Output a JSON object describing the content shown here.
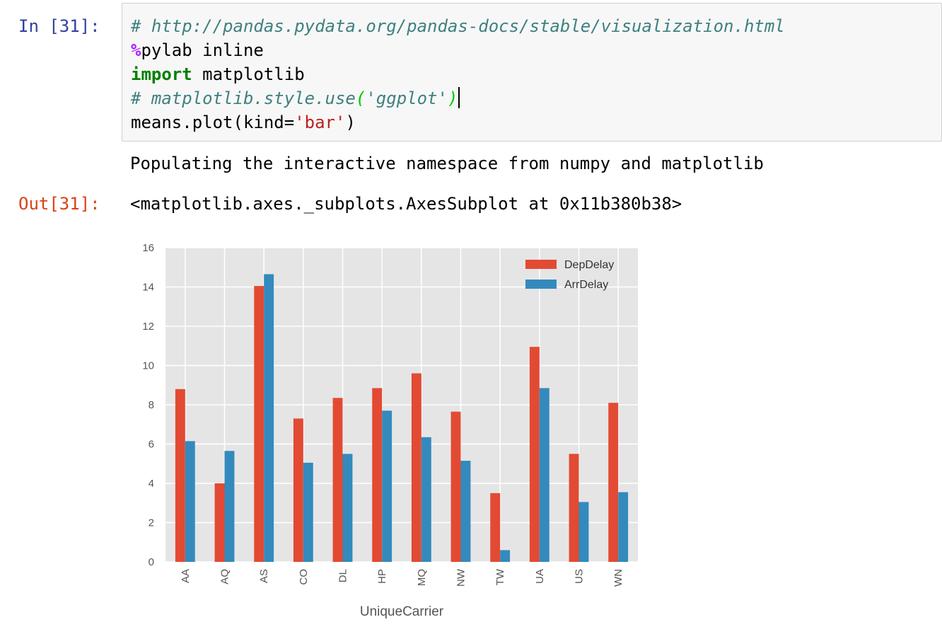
{
  "cell_in": {
    "prompt": "In [31]:",
    "lines": [
      "# http://pandas.pydata.org/pandas-docs/stable/visualization.html",
      "%",
      "pylab inline",
      "import",
      " matplotlib",
      "# matplotlib.style.use",
      "(",
      "'ggplot'",
      ")",
      "means.plot(kind=",
      "'bar'",
      ")"
    ]
  },
  "stdout": "Populating the interactive namespace from numpy and matplotlib",
  "cell_out": {
    "prompt": "Out[31]:",
    "text": "<matplotlib.axes._subplots.AxesSubplot at 0x11b380b38>"
  },
  "chart_data": {
    "type": "bar",
    "xlabel": "UniqueCarrier",
    "ylabel": "",
    "ylim": [
      0,
      16
    ],
    "yticks": [
      "0",
      "2",
      "4",
      "6",
      "8",
      "10",
      "12",
      "14",
      "16"
    ],
    "categories": [
      "AA",
      "AQ",
      "AS",
      "CO",
      "DL",
      "HP",
      "MQ",
      "NW",
      "TW",
      "UA",
      "US",
      "WN"
    ],
    "series": [
      {
        "name": "DepDelay",
        "color": "#e24a33",
        "values": [
          8.8,
          4.0,
          14.05,
          7.3,
          8.35,
          8.85,
          9.6,
          7.65,
          3.5,
          10.95,
          5.5,
          8.1
        ]
      },
      {
        "name": "ArrDelay",
        "color": "#348abd",
        "values": [
          6.15,
          5.65,
          14.65,
          5.05,
          5.5,
          7.7,
          6.35,
          5.15,
          0.6,
          8.85,
          3.05,
          3.55
        ]
      }
    ],
    "grid": true,
    "style": "ggplot",
    "legend": "top-right"
  }
}
